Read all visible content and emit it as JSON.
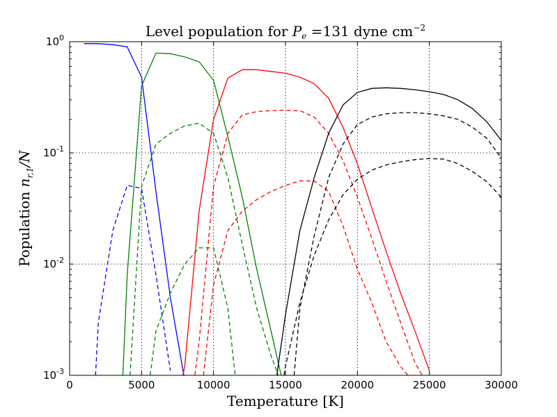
{
  "chart_data": {
    "type": "line",
    "title_main": "Level population for ",
    "title_var": "P",
    "title_sub": "e",
    "title_value": " =131 dyne cm",
    "title_exp": "−2",
    "xlabel": "Temperature [K]",
    "ylabel_main": "Population ",
    "ylabel_var": "n",
    "ylabel_sub": "r,1",
    "ylabel_tail": "/N",
    "xlim": [
      0,
      30000
    ],
    "ylim": [
      0.001,
      1
    ],
    "yscale": "log",
    "grid": true,
    "xticks": [
      0,
      5000,
      10000,
      15000,
      20000,
      25000,
      30000
    ],
    "xtick_labels": [
      "0",
      "5000",
      "10000",
      "15000",
      "20000",
      "25000",
      "30000"
    ],
    "yticks": [
      0.001,
      0.01,
      0.1,
      1
    ],
    "ytick_bases": [
      "10",
      "10",
      "10",
      "10"
    ],
    "ytick_exps": [
      "-3",
      "-2",
      "-1",
      "0"
    ],
    "series": [
      {
        "color": "#0000ff",
        "dash": "solid",
        "x": [
          1000,
          2000,
          3000,
          4000,
          5000,
          6000,
          7000,
          8000
        ],
        "y": [
          0.96,
          0.96,
          0.94,
          0.9,
          0.48,
          0.045,
          0.005,
          0.0009
        ]
      },
      {
        "color": "#0000ff",
        "dash": "dashed",
        "x": [
          1800,
          2000,
          3000,
          4000,
          5000,
          6000,
          7000
        ],
        "y": [
          0.001,
          0.003,
          0.02,
          0.051,
          0.048,
          0.008,
          0.0011
        ]
      },
      {
        "color": "#008000",
        "dash": "solid",
        "x": [
          3700,
          4000,
          5000,
          6000,
          7000,
          8000,
          9000,
          10000,
          11000,
          12000,
          13000,
          14000,
          14700
        ],
        "y": [
          0.001,
          0.008,
          0.4,
          0.79,
          0.78,
          0.73,
          0.66,
          0.45,
          0.14,
          0.04,
          0.009,
          0.0025,
          0.001
        ]
      },
      {
        "color": "#008000",
        "dash": "dashed",
        "x": [
          4200,
          5000,
          6000,
          7000,
          8000,
          9000,
          10000,
          11000,
          12000,
          13000,
          14000,
          14500
        ],
        "y": [
          0.001,
          0.05,
          0.12,
          0.15,
          0.175,
          0.185,
          0.15,
          0.06,
          0.015,
          0.004,
          0.0015,
          0.001
        ]
      },
      {
        "color": "#008000",
        "dash": "dashed",
        "x": [
          5600,
          6000,
          7000,
          8000,
          9000,
          10000,
          11000,
          11500
        ],
        "y": [
          0.001,
          0.0025,
          0.0055,
          0.01,
          0.014,
          0.014,
          0.004,
          0.001
        ]
      },
      {
        "color": "#ff0000",
        "dash": "solid",
        "x": [
          7800,
          8000,
          9000,
          10000,
          11000,
          12000,
          13000,
          14000,
          15000,
          16000,
          17000,
          18000,
          19000,
          20000,
          21000,
          22000,
          23000,
          24000,
          25000
        ],
        "y": [
          0.0009,
          0.0012,
          0.03,
          0.2,
          0.47,
          0.56,
          0.56,
          0.54,
          0.52,
          0.48,
          0.42,
          0.31,
          0.17,
          0.08,
          0.032,
          0.013,
          0.0055,
          0.0025,
          0.0011
        ]
      },
      {
        "color": "#ff0000",
        "dash": "dashed",
        "x": [
          8700,
          9000,
          10000,
          11000,
          12000,
          13000,
          14000,
          15000,
          16000,
          17000,
          18000,
          19000,
          20000,
          21000,
          22000,
          23000,
          24000,
          24500
        ],
        "y": [
          0.001,
          0.002,
          0.05,
          0.15,
          0.22,
          0.235,
          0.24,
          0.242,
          0.24,
          0.21,
          0.15,
          0.085,
          0.04,
          0.017,
          0.007,
          0.003,
          0.0013,
          0.001
        ]
      },
      {
        "color": "#ff0000",
        "dash": "dashed",
        "x": [
          9300,
          10000,
          11000,
          12000,
          13000,
          14000,
          15000,
          16000,
          17000,
          18000,
          19000,
          20000,
          21000,
          22000,
          23000,
          23500
        ],
        "y": [
          0.001,
          0.0065,
          0.02,
          0.03,
          0.038,
          0.045,
          0.051,
          0.056,
          0.056,
          0.045,
          0.022,
          0.009,
          0.0045,
          0.002,
          0.0012,
          0.001
        ]
      },
      {
        "color": "#000000",
        "dash": "solid",
        "x": [
          14400,
          15000,
          16000,
          17000,
          18000,
          19000,
          20000,
          21000,
          22000,
          23000,
          24000,
          25000,
          26000,
          27000,
          28000,
          29000,
          30000
        ],
        "y": [
          0.001,
          0.0035,
          0.02,
          0.06,
          0.15,
          0.27,
          0.35,
          0.38,
          0.385,
          0.38,
          0.37,
          0.355,
          0.335,
          0.3,
          0.25,
          0.19,
          0.13
        ]
      },
      {
        "color": "#000000",
        "dash": "dashed",
        "x": [
          15600,
          16000,
          17000,
          18000,
          19000,
          20000,
          21000,
          22000,
          23000,
          24000,
          25000,
          26000,
          27000,
          28000,
          29000,
          30000
        ],
        "y": [
          0.001,
          0.004,
          0.018,
          0.06,
          0.12,
          0.18,
          0.21,
          0.225,
          0.23,
          0.23,
          0.225,
          0.215,
          0.2,
          0.17,
          0.135,
          0.09
        ]
      },
      {
        "color": "#000000",
        "dash": "dashed",
        "x": [
          14900,
          15000,
          16000,
          17000,
          18000,
          19000,
          20000,
          21000,
          22000,
          23000,
          24000,
          25000,
          26000,
          27000,
          28000,
          29000,
          30000
        ],
        "y": [
          0.001,
          0.0012,
          0.0045,
          0.012,
          0.025,
          0.042,
          0.058,
          0.07,
          0.078,
          0.083,
          0.087,
          0.089,
          0.088,
          0.08,
          0.068,
          0.055,
          0.04
        ]
      }
    ]
  }
}
